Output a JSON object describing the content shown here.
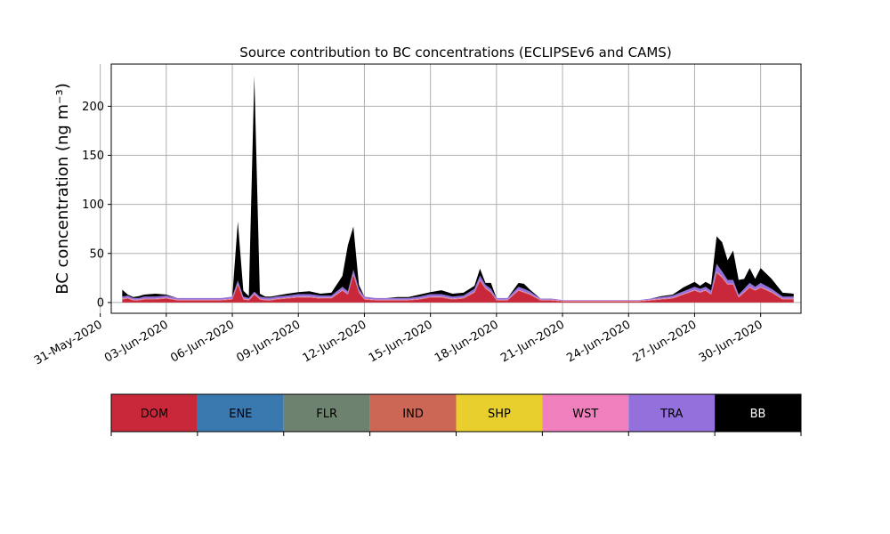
{
  "chart_data": {
    "type": "area",
    "stacked": true,
    "title": "Source contribution to BC concentrations (ECLIPSEv6 and CAMS)",
    "ylabel": "BC concentration (ng m⁻³)",
    "xlabel": "",
    "ylim": [
      -11,
      243
    ],
    "xlim": [
      "2020-05-31T12:00",
      "2020-07-01T20:00"
    ],
    "yticks": [
      0,
      50,
      100,
      150,
      200
    ],
    "xticks": [
      "2020-05-31",
      "2020-06-03",
      "2020-06-06",
      "2020-06-09",
      "2020-06-12",
      "2020-06-15",
      "2020-06-18",
      "2020-06-21",
      "2020-06-24",
      "2020-06-27",
      "2020-06-30"
    ],
    "xtick_labels": [
      "31-May-2020",
      "03-Jun-2020",
      "06-Jun-2020",
      "09-Jun-2020",
      "12-Jun-2020",
      "15-Jun-2020",
      "18-Jun-2020",
      "21-Jun-2020",
      "24-Jun-2020",
      "27-Jun-2020",
      "30-Jun-2020"
    ],
    "grid": true,
    "x": [
      "2020-06-01T00:00",
      "2020-06-01T06:00",
      "2020-06-01T12:00",
      "2020-06-01T18:00",
      "2020-06-02T00:00",
      "2020-06-02T12:00",
      "2020-06-03T00:00",
      "2020-06-03T12:00",
      "2020-06-04T00:00",
      "2020-06-04T12:00",
      "2020-06-05T00:00",
      "2020-06-05T12:00",
      "2020-06-06T00:00",
      "2020-06-06T06:00",
      "2020-06-06T12:00",
      "2020-06-06T18:00",
      "2020-06-07T00:00",
      "2020-06-07T06:00",
      "2020-06-07T12:00",
      "2020-06-07T18:00",
      "2020-06-08T00:00",
      "2020-06-08T12:00",
      "2020-06-09T00:00",
      "2020-06-09T12:00",
      "2020-06-10T00:00",
      "2020-06-10T12:00",
      "2020-06-11T00:00",
      "2020-06-11T06:00",
      "2020-06-11T12:00",
      "2020-06-11T18:00",
      "2020-06-12T00:00",
      "2020-06-12T12:00",
      "2020-06-13T00:00",
      "2020-06-13T12:00",
      "2020-06-14T00:00",
      "2020-06-14T12:00",
      "2020-06-15T00:00",
      "2020-06-15T12:00",
      "2020-06-16T00:00",
      "2020-06-16T12:00",
      "2020-06-17T00:00",
      "2020-06-17T06:00",
      "2020-06-17T12:00",
      "2020-06-17T18:00",
      "2020-06-18T00:00",
      "2020-06-18T12:00",
      "2020-06-19T00:00",
      "2020-06-19T06:00",
      "2020-06-19T12:00",
      "2020-06-20T00:00",
      "2020-06-20T12:00",
      "2020-06-21T00:00",
      "2020-06-21T12:00",
      "2020-06-22T00:00",
      "2020-06-22T12:00",
      "2020-06-23T00:00",
      "2020-06-23T12:00",
      "2020-06-24T00:00",
      "2020-06-24T12:00",
      "2020-06-25T00:00",
      "2020-06-25T12:00",
      "2020-06-26T00:00",
      "2020-06-26T12:00",
      "2020-06-27T00:00",
      "2020-06-27T06:00",
      "2020-06-27T12:00",
      "2020-06-27T18:00",
      "2020-06-28T00:00",
      "2020-06-28T06:00",
      "2020-06-28T12:00",
      "2020-06-28T18:00",
      "2020-06-29T00:00",
      "2020-06-29T06:00",
      "2020-06-29T12:00",
      "2020-06-29T18:00",
      "2020-06-30T00:00",
      "2020-06-30T12:00",
      "2020-07-01T00:00",
      "2020-07-01T12:00"
    ],
    "series": [
      {
        "name": "DOM",
        "color": "#c8283a",
        "values": [
          3,
          4,
          2,
          2,
          3,
          3,
          4,
          2,
          2,
          2,
          2,
          2,
          3,
          18,
          3,
          2,
          8,
          3,
          2,
          2,
          3,
          4,
          5,
          5,
          4,
          4,
          12,
          8,
          28,
          10,
          3,
          2,
          2,
          2,
          2,
          3,
          5,
          5,
          3,
          4,
          10,
          22,
          14,
          10,
          2,
          2,
          12,
          10,
          8,
          2,
          2,
          1,
          1,
          1,
          1,
          1,
          1,
          1,
          1,
          2,
          3,
          4,
          8,
          12,
          10,
          12,
          8,
          30,
          25,
          18,
          18,
          5,
          10,
          15,
          12,
          15,
          10,
          3,
          3
        ]
      },
      {
        "name": "ENE",
        "color": "#3a78b0",
        "values": [
          0,
          0,
          0,
          0,
          0,
          0,
          0,
          0,
          0,
          0,
          0,
          0,
          0,
          0,
          0,
          0,
          0,
          0,
          0,
          0,
          0,
          0,
          0,
          0,
          0,
          0,
          0,
          0,
          0,
          0,
          0,
          0,
          0,
          0,
          0,
          0,
          0,
          0,
          0,
          0,
          0,
          0,
          0,
          0,
          0,
          0,
          0,
          0,
          0,
          0,
          0,
          0,
          0,
          0,
          0,
          0,
          0,
          0,
          0,
          0,
          0,
          0,
          0,
          0,
          0,
          0,
          0,
          0,
          0,
          0,
          0,
          0,
          0,
          0,
          0,
          0,
          0,
          0,
          0
        ]
      },
      {
        "name": "FLR",
        "color": "#6e8270",
        "values": [
          0,
          0,
          0,
          0,
          0,
          0,
          0,
          0,
          0,
          0,
          0,
          0,
          0,
          0,
          0,
          0,
          0,
          0,
          0,
          0,
          0,
          0,
          0,
          0,
          0,
          0,
          0,
          0,
          0,
          0,
          0,
          0,
          0,
          0,
          0,
          0,
          0,
          0,
          0,
          0,
          0,
          0,
          0,
          0,
          0,
          0,
          0,
          0,
          0,
          0,
          0,
          0,
          0,
          0,
          0,
          0,
          0,
          0,
          0,
          0,
          0,
          0,
          0,
          0,
          0,
          0,
          0,
          0,
          0,
          0,
          0,
          0,
          0,
          0,
          0,
          0,
          0,
          0,
          0
        ]
      },
      {
        "name": "IND",
        "color": "#cc6655",
        "values": [
          0.5,
          0.5,
          0.5,
          0.5,
          0.5,
          0.5,
          0.5,
          0.5,
          0.5,
          0.5,
          0.5,
          0.5,
          0.5,
          1,
          0.5,
          0.5,
          0.5,
          0.5,
          0.5,
          0.5,
          0.5,
          0.5,
          0.5,
          0.5,
          0.5,
          0.5,
          0.5,
          0.5,
          1,
          0.5,
          0.5,
          0.5,
          0.5,
          0.5,
          0.5,
          0.5,
          0.5,
          0.5,
          0.5,
          0.5,
          0.5,
          1,
          0.5,
          0.5,
          0.5,
          0.5,
          0.5,
          0.5,
          0.5,
          0.5,
          0.5,
          0.5,
          0.5,
          0.5,
          0.5,
          0.5,
          0.5,
          0.5,
          0.5,
          0.5,
          0.5,
          0.5,
          0.5,
          0.5,
          0.5,
          0.5,
          0.5,
          1,
          1,
          0.5,
          0.5,
          0.5,
          0.5,
          0.5,
          0.5,
          0.5,
          0.5,
          0.5,
          0.5
        ]
      },
      {
        "name": "SHP",
        "color": "#e8cf2d",
        "values": [
          0,
          0,
          0,
          0,
          0,
          0,
          0,
          0,
          0,
          0,
          0,
          0,
          0,
          0,
          0,
          0,
          0,
          0,
          0,
          0,
          0,
          0,
          0,
          0,
          0,
          0,
          0,
          0,
          0,
          0,
          0,
          0,
          0,
          0,
          0,
          0,
          0,
          0,
          0,
          0,
          0,
          0,
          0,
          0,
          0,
          0,
          0,
          0,
          0,
          0,
          0,
          0,
          0,
          0,
          0,
          0,
          0,
          0,
          0,
          0,
          0,
          0,
          0,
          0,
          0,
          0,
          0,
          0,
          0,
          0,
          0,
          0,
          0,
          0,
          0,
          0,
          0,
          0,
          0
        ]
      },
      {
        "name": "WST",
        "color": "#f07fbe",
        "values": [
          0.5,
          0.5,
          0.5,
          0.5,
          0.5,
          0.5,
          0.5,
          0.5,
          0.5,
          0.5,
          0.5,
          0.5,
          0.5,
          0.5,
          0.5,
          0.5,
          0.5,
          0.5,
          0.5,
          0.5,
          0.5,
          0.5,
          0.5,
          0.5,
          0.5,
          0.5,
          0.5,
          0.5,
          0.5,
          0.5,
          0.5,
          0.5,
          0.5,
          0.5,
          0.5,
          0.5,
          0.5,
          0.5,
          0.5,
          0.5,
          0.5,
          0.5,
          0.5,
          0.5,
          0.5,
          0.5,
          0.5,
          0.5,
          0.5,
          0.5,
          0.5,
          0.5,
          0.5,
          0.5,
          0.5,
          0.5,
          0.5,
          0.5,
          0.5,
          0.5,
          0.5,
          0.5,
          0.5,
          0.5,
          0.5,
          0.5,
          0.5,
          0.5,
          0.5,
          0.5,
          0.5,
          0.5,
          0.5,
          0.5,
          0.5,
          0.5,
          0.5,
          0.5,
          0.5
        ]
      },
      {
        "name": "TRA",
        "color": "#9370db",
        "values": [
          2,
          2,
          1.5,
          1.5,
          2,
          2,
          2,
          1.5,
          1.5,
          1.5,
          1.5,
          1.5,
          2,
          3,
          2,
          1.5,
          2,
          2,
          2,
          2,
          2,
          2,
          2.5,
          2.5,
          2,
          2,
          3,
          2.5,
          4,
          3,
          2,
          1.5,
          1.5,
          1.5,
          1.5,
          2,
          2.5,
          2.5,
          2,
          2,
          3,
          4,
          3,
          3,
          1.5,
          1.5,
          3,
          3,
          2.5,
          1,
          1,
          0.5,
          0.5,
          0.5,
          0.5,
          0.5,
          0.5,
          0.5,
          0.5,
          1,
          1.5,
          2,
          2.5,
          3,
          3,
          3,
          3,
          8,
          5,
          4,
          4,
          2,
          3,
          4,
          3,
          4,
          3,
          2,
          2
        ]
      },
      {
        "name": "BB",
        "color": "#000000",
        "values": [
          7,
          1,
          1,
          2,
          2,
          3,
          1,
          0,
          0,
          0,
          0,
          0,
          0,
          60,
          6,
          2,
          220,
          3,
          1,
          1,
          1,
          2,
          2,
          3,
          2,
          3,
          11,
          47,
          44,
          4,
          0,
          0,
          0,
          1,
          1,
          2,
          2,
          4,
          3,
          3,
          3,
          7,
          2,
          6,
          0,
          0,
          4,
          5,
          2,
          0,
          0,
          0,
          0,
          0,
          0,
          0,
          0,
          0,
          0,
          0,
          1,
          1,
          4,
          5,
          3,
          5,
          6,
          28,
          30,
          20,
          30,
          15,
          10,
          15,
          8,
          15,
          10,
          4,
          3
        ]
      }
    ]
  }
}
